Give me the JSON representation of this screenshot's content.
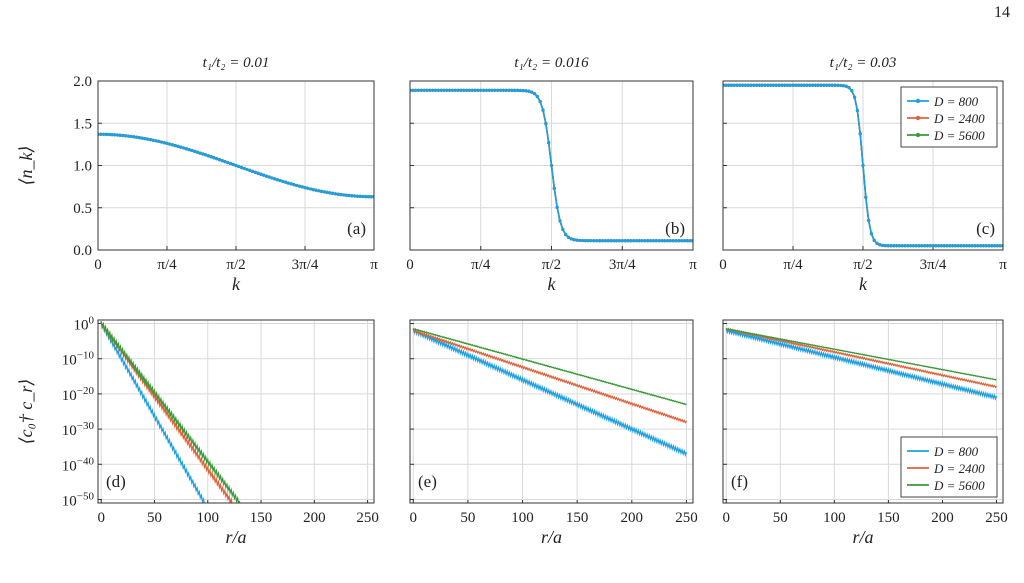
{
  "page_number": "14",
  "colors": {
    "D800": "#1f9fe0",
    "D2400": "#e0623a",
    "D5600": "#3a9a3a",
    "grid": "#d9d9d9",
    "frame": "#333333"
  },
  "chart_data": [
    {
      "id": "a",
      "type": "line",
      "panel_label": "(a)",
      "title": "t₁/t₂ = 0.01",
      "xlabel": "k",
      "ylabel": "⟨n_k⟩",
      "xlim": [
        0,
        3.14159
      ],
      "ylim": [
        0,
        2
      ],
      "xticks": [
        0,
        0.7854,
        1.5708,
        2.3562,
        3.14159
      ],
      "xtick_labels": [
        "0",
        "π/4",
        "π/2",
        "3π/4",
        "π"
      ],
      "yticks": [
        0,
        0.5,
        1,
        1.5,
        2
      ],
      "ytick_labels": [
        "0.0",
        "0.5",
        "1.0",
        "1.5",
        "2.0"
      ],
      "profile": {
        "kind": "cosine",
        "a": 1.0,
        "b": 0.37
      },
      "series": [
        {
          "name": "D = 800"
        },
        {
          "name": "D = 2400"
        },
        {
          "name": "D = 5600"
        }
      ]
    },
    {
      "id": "b",
      "type": "line",
      "panel_label": "(b)",
      "title": "t₁/t₂ = 0.016",
      "xlabel": "k",
      "ylabel": "",
      "xlim": [
        0,
        3.14159
      ],
      "ylim": [
        0,
        2
      ],
      "xticks": [
        0,
        0.7854,
        1.5708,
        2.3562,
        3.14159
      ],
      "xtick_labels": [
        "0",
        "π/4",
        "π/2",
        "3π/4",
        "π"
      ],
      "yticks": [
        0,
        0.5,
        1,
        1.5,
        2
      ],
      "ytick_labels": [],
      "profile": {
        "kind": "step",
        "high": 1.89,
        "low": 0.11,
        "center": 1.5708,
        "width": 0.1
      },
      "series": [
        {
          "name": "D = 800"
        },
        {
          "name": "D = 2400"
        },
        {
          "name": "D = 5600"
        }
      ]
    },
    {
      "id": "c",
      "type": "line",
      "panel_label": "(c)",
      "title": "t₁/t₂ = 0.03",
      "xlabel": "k",
      "ylabel": "",
      "xlim": [
        0,
        3.14159
      ],
      "ylim": [
        0,
        2
      ],
      "xticks": [
        0,
        0.7854,
        1.5708,
        2.3562,
        3.14159
      ],
      "xtick_labels": [
        "0",
        "π/4",
        "π/2",
        "3π/4",
        "π"
      ],
      "yticks": [
        0,
        0.5,
        1,
        1.5,
        2
      ],
      "ytick_labels": [],
      "profile": {
        "kind": "step",
        "high": 1.95,
        "low": 0.05,
        "center": 1.5708,
        "width": 0.075
      },
      "legend": "top-right",
      "series": [
        {
          "name": "D = 800"
        },
        {
          "name": "D = 2400"
        },
        {
          "name": "D = 5600"
        }
      ]
    },
    {
      "id": "d",
      "type": "line",
      "panel_label": "(d)",
      "title": "",
      "xlabel": "r/a",
      "ylabel": "⟨c₀† c_r⟩",
      "xlim": [
        -3,
        256
      ],
      "ylim": [
        -51,
        1
      ],
      "yscale": "log",
      "xticks": [
        0,
        50,
        100,
        150,
        200,
        250
      ],
      "xtick_labels": [
        "0",
        "50",
        "100",
        "150",
        "200",
        "250"
      ],
      "yticks": [
        0,
        -10,
        -20,
        -30,
        -40,
        -50
      ],
      "ytick_labels": [
        "10^0",
        "10^−10",
        "10^−20",
        "10^−30",
        "10^−40",
        "10^−50"
      ],
      "series": [
        {
          "name": "D = 800",
          "log10_start": 0,
          "log10_end": -51,
          "x_end": 97,
          "zigzag": 1.2
        },
        {
          "name": "D = 2400",
          "log10_start": 0,
          "log10_end": -51,
          "x_end": 123,
          "zigzag": 1.2
        },
        {
          "name": "D = 5600",
          "log10_start": 0,
          "log10_end": -51,
          "x_end": 130,
          "zigzag": 1.2
        }
      ]
    },
    {
      "id": "e",
      "type": "line",
      "panel_label": "(e)",
      "title": "",
      "xlabel": "r/a",
      "ylabel": "",
      "xlim": [
        -3,
        256
      ],
      "ylim": [
        -51,
        1
      ],
      "yscale": "log",
      "xticks": [
        0,
        50,
        100,
        150,
        200,
        250
      ],
      "xtick_labels": [
        "0",
        "50",
        "100",
        "150",
        "200",
        "250"
      ],
      "yticks": [
        0,
        -10,
        -20,
        -30,
        -40,
        -50
      ],
      "ytick_labels": [],
      "series": [
        {
          "name": "D = 800",
          "log10_start": -2,
          "log10_end": -37,
          "x_end": 250,
          "zigzag": 1.0
        },
        {
          "name": "D = 2400",
          "log10_start": -2,
          "log10_end": -28,
          "x_end": 250,
          "zigzag": 0.5
        },
        {
          "name": "D = 5600",
          "log10_start": -1.5,
          "log10_end": -23,
          "x_end": 250,
          "zigzag": 0.2
        }
      ]
    },
    {
      "id": "f",
      "type": "line",
      "panel_label": "(f)",
      "title": "",
      "xlabel": "r/a",
      "ylabel": "",
      "xlim": [
        -3,
        256
      ],
      "ylim": [
        -51,
        1
      ],
      "yscale": "log",
      "xticks": [
        0,
        50,
        100,
        150,
        200,
        250
      ],
      "xtick_labels": [
        "0",
        "50",
        "100",
        "150",
        "200",
        "250"
      ],
      "yticks": [
        0,
        -10,
        -20,
        -30,
        -40,
        -50
      ],
      "ytick_labels": [],
      "legend": "bottom-right",
      "series": [
        {
          "name": "D = 800",
          "log10_start": -2,
          "log10_end": -21,
          "x_end": 250,
          "zigzag": 0.9
        },
        {
          "name": "D = 2400",
          "log10_start": -1.5,
          "log10_end": -18,
          "x_end": 250,
          "zigzag": 0.4
        },
        {
          "name": "D = 5600",
          "log10_start": -1.5,
          "log10_end": -16,
          "x_end": 250,
          "zigzag": 0.15
        }
      ]
    }
  ]
}
